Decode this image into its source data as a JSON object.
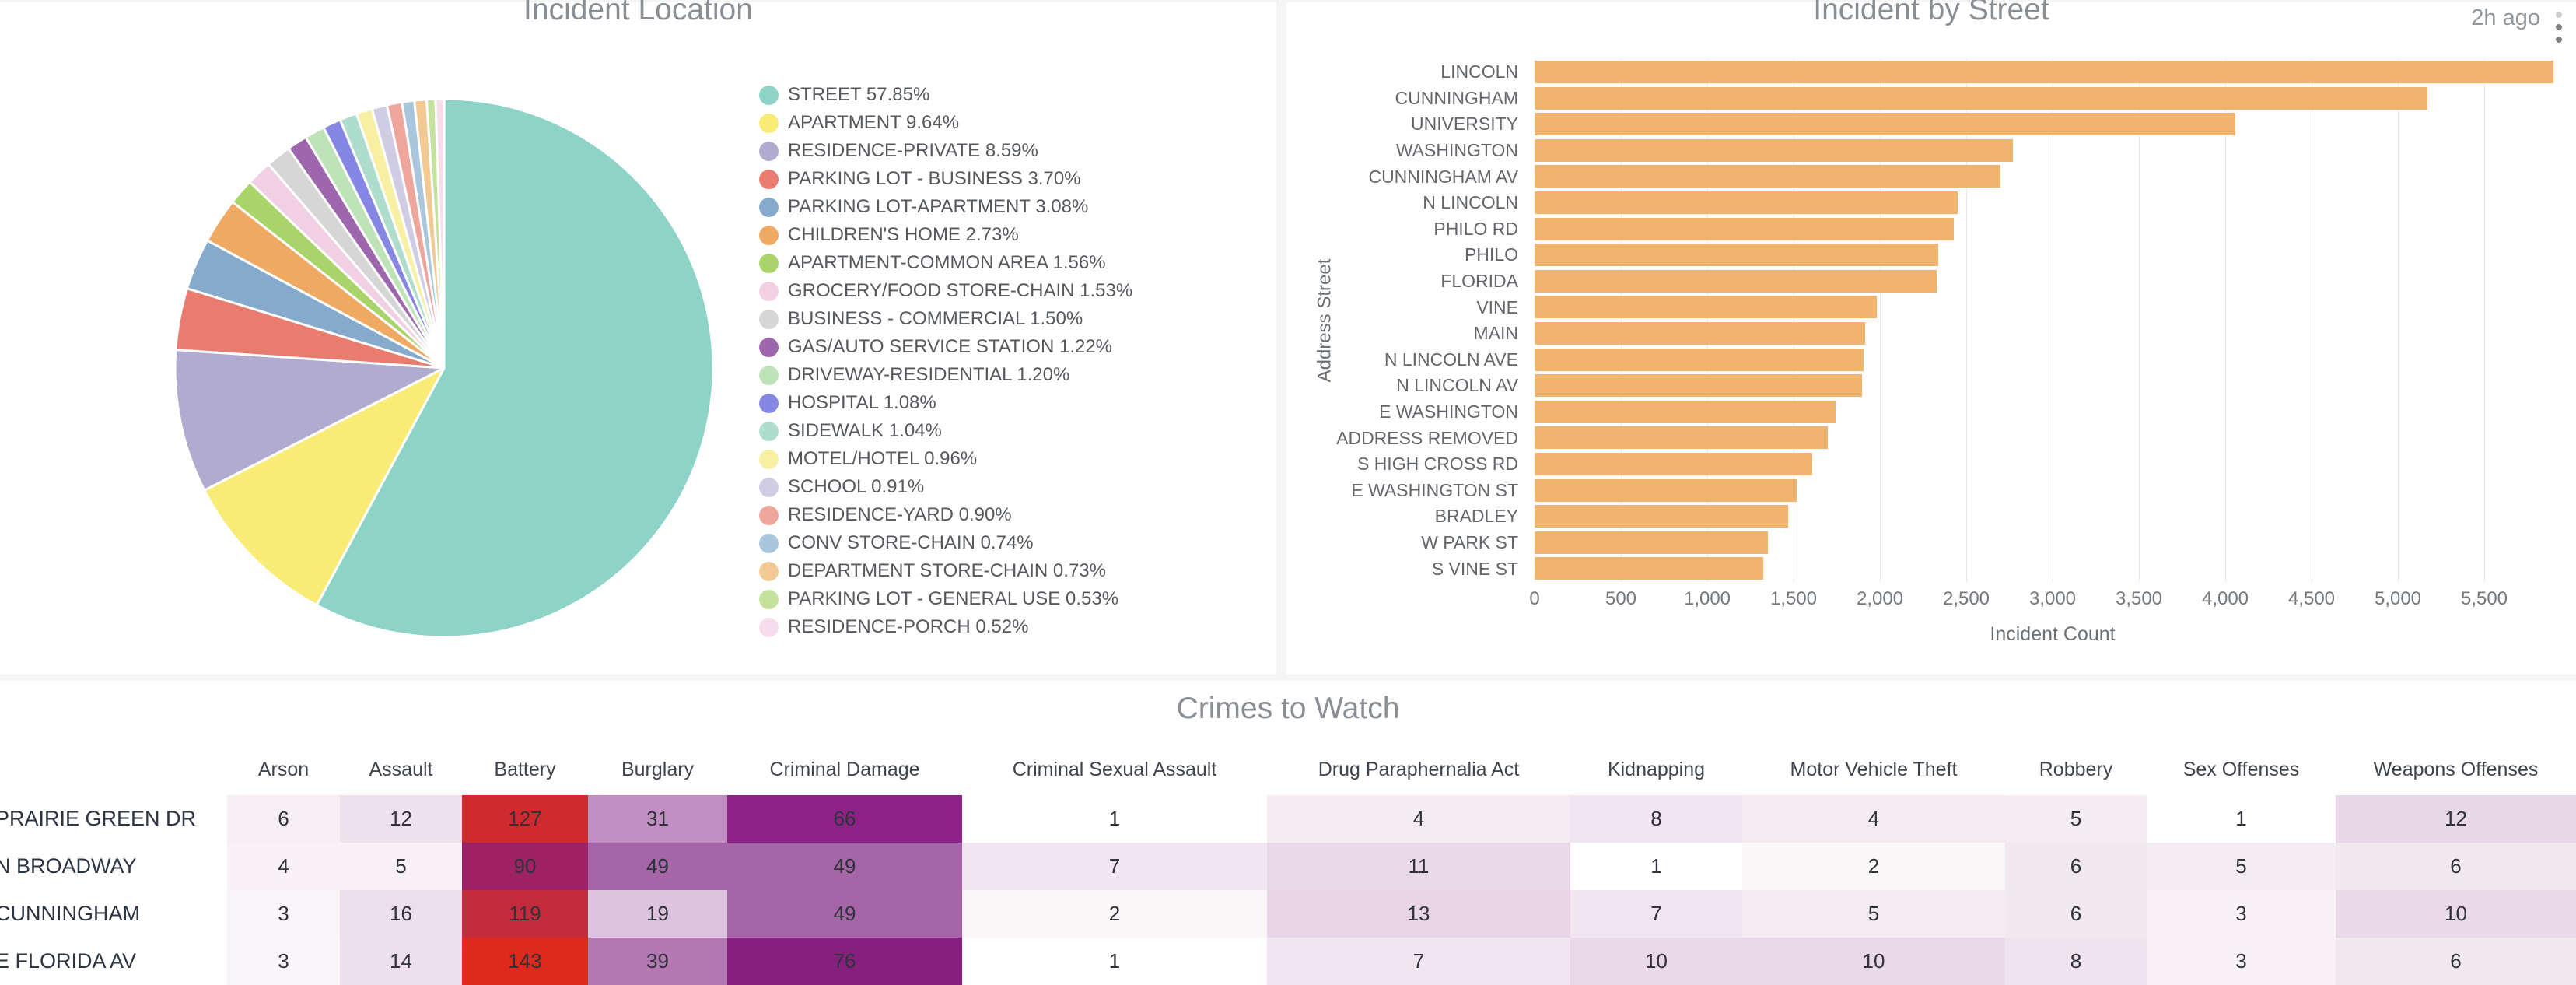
{
  "chart_data": [
    {
      "type": "pie",
      "title": "Incident Location",
      "legend_position": "right",
      "items": [
        {
          "label": "STREET",
          "value": "57.85",
          "color": "#8dd3c7"
        },
        {
          "label": "APARTMENT",
          "value": "9.64",
          "color": "#f8ec77"
        },
        {
          "label": "RESIDENCE-PRIVATE",
          "value": "8.59",
          "color": "#b1abd0"
        },
        {
          "label": "PARKING LOT - BUSINESS",
          "value": "3.70",
          "color": "#e97c6f"
        },
        {
          "label": "PARKING LOT-APARTMENT",
          "value": "3.08",
          "color": "#85aacb"
        },
        {
          "label": "CHILDREN'S HOME",
          "value": "2.73",
          "color": "#efa963"
        },
        {
          "label": "APARTMENT-COMMON AREA",
          "value": "1.56",
          "color": "#a8d46a"
        },
        {
          "label": "GROCERY/FOOD STORE-CHAIN",
          "value": "1.53",
          "color": "#f2d0e4"
        },
        {
          "label": "BUSINESS - COMMERCIAL",
          "value": "1.50",
          "color": "#d6d6d6"
        },
        {
          "label": "GAS/AUTO SERVICE STATION",
          "value": "1.22",
          "color": "#9d66ad"
        },
        {
          "label": "DRIVEWAY-RESIDENTIAL",
          "value": "1.20",
          "color": "#bfe3b8"
        },
        {
          "label": "HOSPITAL",
          "value": "1.08",
          "color": "#8687e4"
        },
        {
          "label": "SIDEWALK",
          "value": "1.04",
          "color": "#aedccd"
        },
        {
          "label": "MOTEL/HOTEL",
          "value": "0.96",
          "color": "#f7f0a2"
        },
        {
          "label": "SCHOOL",
          "value": "0.91",
          "color": "#cfcce3"
        },
        {
          "label": "RESIDENCE-YARD",
          "value": "0.90",
          "color": "#eea69c"
        },
        {
          "label": "CONV STORE-CHAIN",
          "value": "0.74",
          "color": "#a9c6dd"
        },
        {
          "label": "DEPARTMENT STORE-CHAIN",
          "value": "0.73",
          "color": "#f2c992"
        },
        {
          "label": "PARKING LOT - GENERAL USE",
          "value": "0.53",
          "color": "#c4e29d"
        },
        {
          "label": "RESIDENCE-PORCH",
          "value": "0.52",
          "color": "#f7dceb"
        }
      ]
    },
    {
      "type": "bar",
      "orientation": "horizontal",
      "title": "Incident by Street",
      "updated": "2h ago",
      "xlabel": "Incident Count",
      "ylabel": "Address Street",
      "xlim": [
        0,
        6000
      ],
      "grid": true,
      "bar_color": "#f1b470",
      "xticks": [
        {
          "v": 0,
          "label": "0"
        },
        {
          "v": 500,
          "label": "500"
        },
        {
          "v": 1000,
          "label": "1,000"
        },
        {
          "v": 1500,
          "label": "1,500"
        },
        {
          "v": 2000,
          "label": "2,000"
        },
        {
          "v": 2500,
          "label": "2,500"
        },
        {
          "v": 3000,
          "label": "3,000"
        },
        {
          "v": 3500,
          "label": "3,500"
        },
        {
          "v": 4000,
          "label": "4,000"
        },
        {
          "v": 4500,
          "label": "4,500"
        },
        {
          "v": 5000,
          "label": "5,000"
        },
        {
          "v": 5500,
          "label": "5,500"
        }
      ],
      "bars": [
        {
          "label": "LINCOLN",
          "value": 5900
        },
        {
          "label": "CUNNINGHAM",
          "value": 5170
        },
        {
          "label": "UNIVERSITY",
          "value": 4060
        },
        {
          "label": "WASHINGTON",
          "value": 2770
        },
        {
          "label": "CUNNINGHAM AV",
          "value": 2700
        },
        {
          "label": "N LINCOLN",
          "value": 2450
        },
        {
          "label": "PHILO RD",
          "value": 2430
        },
        {
          "label": "PHILO",
          "value": 2340
        },
        {
          "label": "FLORIDA",
          "value": 2330
        },
        {
          "label": "VINE",
          "value": 1980
        },
        {
          "label": "MAIN",
          "value": 1915
        },
        {
          "label": "N LINCOLN AVE",
          "value": 1905
        },
        {
          "label": "N LINCOLN AV",
          "value": 1895
        },
        {
          "label": "E WASHINGTON",
          "value": 1745
        },
        {
          "label": "ADDRESS REMOVED",
          "value": 1700
        },
        {
          "label": "S HIGH CROSS RD",
          "value": 1610
        },
        {
          "label": "E WASHINGTON ST",
          "value": 1520
        },
        {
          "label": "BRADLEY",
          "value": 1470
        },
        {
          "label": "W PARK ST",
          "value": 1350
        },
        {
          "label": "S VINE ST",
          "value": 1325
        }
      ]
    },
    {
      "type": "heatmap",
      "title": "Crimes to Watch",
      "columns": [
        "Arson",
        "Assault",
        "Battery",
        "Burglary",
        "Criminal Damage",
        "Criminal Sexual Assault",
        "Drug Paraphernalia Act",
        "Kidnapping",
        "Motor Vehicle Theft",
        "Robbery",
        "Sex Offenses",
        "Weapons Offenses"
      ],
      "rows": [
        {
          "label": "PRAIRIE GREEN DR",
          "values": [
            6,
            12,
            127,
            31,
            66,
            1,
            4,
            8,
            4,
            5,
            1,
            12
          ],
          "colors": [
            "#f6eef4",
            "#eee2ed",
            "#d0292e",
            "#c28fc4",
            "#8c2288",
            "#ffffff",
            "#f5ecf3",
            "#f1e6f0",
            "#f4ebf2",
            "#f4ecf2",
            "#ffffff",
            "#e9d8e8"
          ]
        },
        {
          "label": "N BROADWAY",
          "values": [
            4,
            5,
            90,
            49,
            49,
            7,
            11,
            1,
            2,
            6,
            5,
            6
          ],
          "colors": [
            "#f8f2f6",
            "#f8f2f6",
            "#9e2166",
            "#a765a9",
            "#a765a9",
            "#f1e5ef",
            "#ead9e9",
            "#ffffff",
            "#fbf8fa",
            "#f2e8f0",
            "#f4ecf2",
            "#f2e8f0"
          ]
        },
        {
          "label": "CUNNINGHAM",
          "values": [
            3,
            16,
            119,
            19,
            49,
            2,
            13,
            7,
            5,
            6,
            3,
            10
          ],
          "colors": [
            "#f9f4f7",
            "#ecdeeb",
            "#c42b3c",
            "#ddc3de",
            "#a765a9",
            "#fbf7f9",
            "#e7d5e7",
            "#f1e6f0",
            "#f4ebf2",
            "#f2e8f0",
            "#f8f1f6",
            "#ead9e9"
          ]
        },
        {
          "label": "E FLORIDA AV",
          "values": [
            3,
            14,
            143,
            39,
            76,
            1,
            7,
            10,
            10,
            8,
            3,
            6
          ],
          "colors": [
            "#f9f4f7",
            "#ede0ec",
            "#dd2a1d",
            "#b478b5",
            "#85207f",
            "#ffffff",
            "#f1e6f0",
            "#ead9e9",
            "#ead9e9",
            "#efe4ed",
            "#f8f1f6",
            "#f2e8f0"
          ]
        }
      ]
    }
  ]
}
